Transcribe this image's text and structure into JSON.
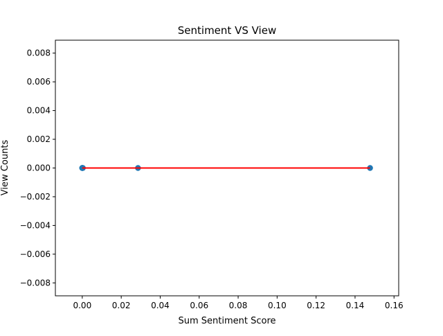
{
  "chart_data": {
    "type": "scatter",
    "title": "Sentiment VS View",
    "xlabel": "Sum Sentiment Score",
    "ylabel": "View Counts",
    "xlim": [
      -0.0138,
      0.1624
    ],
    "ylim": [
      -0.0089,
      0.0089
    ],
    "xticks": [
      0.0,
      0.02,
      0.04,
      0.06,
      0.08,
      0.1,
      0.12,
      0.14,
      0.16
    ],
    "xtick_labels": [
      "0.00",
      "0.02",
      "0.04",
      "0.06",
      "0.08",
      "0.10",
      "0.12",
      "0.14",
      "0.16"
    ],
    "yticks": [
      -0.008,
      -0.006,
      -0.004,
      -0.002,
      0.0,
      0.002,
      0.004,
      0.006,
      0.008
    ],
    "ytick_labels": [
      "−0.008",
      "−0.006",
      "−0.004",
      "−0.002",
      "0.000",
      "0.002",
      "0.004",
      "0.006",
      "0.008"
    ],
    "grid": false,
    "series": [
      {
        "kind": "scatter",
        "color": "#1f77b4",
        "x": [
          0.0,
          0.0,
          0.0,
          0.0,
          0.0003,
          0.0286,
          0.1477
        ],
        "y": [
          0,
          0,
          0,
          0,
          0,
          0,
          0
        ]
      },
      {
        "kind": "line",
        "color": "#ff0000",
        "x": [
          0.0,
          0.1477
        ],
        "y": [
          0,
          0
        ]
      }
    ]
  }
}
